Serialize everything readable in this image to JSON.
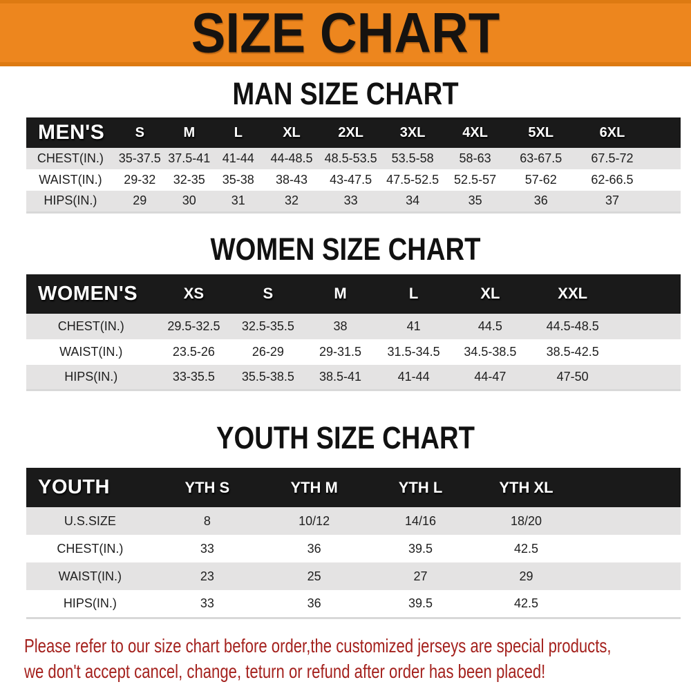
{
  "banner": {
    "title": "SIZE CHART",
    "bg_color": "#ED861E",
    "edge_color": "#DD7A12"
  },
  "chart_data": [
    {
      "type": "table",
      "title": "MAN SIZE CHART",
      "header_label": "MEN'S",
      "columns": [
        "S",
        "M",
        "L",
        "XL",
        "2XL",
        "3XL",
        "4XL",
        "5XL",
        "6XL"
      ],
      "rows": [
        {
          "label": "CHEST(IN.)",
          "values": [
            "35-37.5",
            "37.5-41",
            "41-44",
            "44-48.5",
            "48.5-53.5",
            "53.5-58",
            "58-63",
            "63-67.5",
            "67.5-72"
          ]
        },
        {
          "label": "WAIST(IN.)",
          "values": [
            "29-32",
            "32-35",
            "35-38",
            "38-43",
            "43-47.5",
            "47.5-52.5",
            "52.5-57",
            "57-62",
            "62-66.5"
          ]
        },
        {
          "label": "HIPS(IN.)",
          "values": [
            "29",
            "30",
            "31",
            "32",
            "33",
            "34",
            "35",
            "36",
            "37"
          ]
        }
      ]
    },
    {
      "type": "table",
      "title": "WOMEN SIZE CHART",
      "header_label": "WOMEN'S",
      "columns": [
        "XS",
        "S",
        "M",
        "L",
        "XL",
        "XXL"
      ],
      "rows": [
        {
          "label": "CHEST(IN.)",
          "values": [
            "29.5-32.5",
            "32.5-35.5",
            "38",
            "41",
            "44.5",
            "44.5-48.5"
          ]
        },
        {
          "label": "WAIST(IN.)",
          "values": [
            "23.5-26",
            "26-29",
            "29-31.5",
            "31.5-34.5",
            "34.5-38.5",
            "38.5-42.5"
          ]
        },
        {
          "label": "HIPS(IN.)",
          "values": [
            "33-35.5",
            "35.5-38.5",
            "38.5-41",
            "41-44",
            "44-47",
            "47-50"
          ]
        }
      ]
    },
    {
      "type": "table",
      "title": "YOUTH SIZE CHART",
      "header_label": "YOUTH",
      "columns": [
        "YTH S",
        "YTH M",
        "YTH L",
        "YTH XL"
      ],
      "rows": [
        {
          "label": "U.S.SIZE",
          "values": [
            "8",
            "10/12",
            "14/16",
            "18/20"
          ]
        },
        {
          "label": "CHEST(IN.)",
          "values": [
            "33",
            "36",
            "39.5",
            "42.5"
          ]
        },
        {
          "label": "WAIST(IN.)",
          "values": [
            "23",
            "25",
            "27",
            "29"
          ]
        },
        {
          "label": "HIPS(IN.)",
          "values": [
            "33",
            "36",
            "39.5",
            "42.5"
          ]
        }
      ]
    }
  ],
  "table_header_bg": "#1A1A1A",
  "row_stripe_color": "#E4E3E3",
  "footer": {
    "color": "#A4211D",
    "lines": [
      "Please refer to our size chart before order,the customized jerseys are special products,",
      "we don't accept cancel, change, teturn or refund after order has been placed!"
    ]
  }
}
